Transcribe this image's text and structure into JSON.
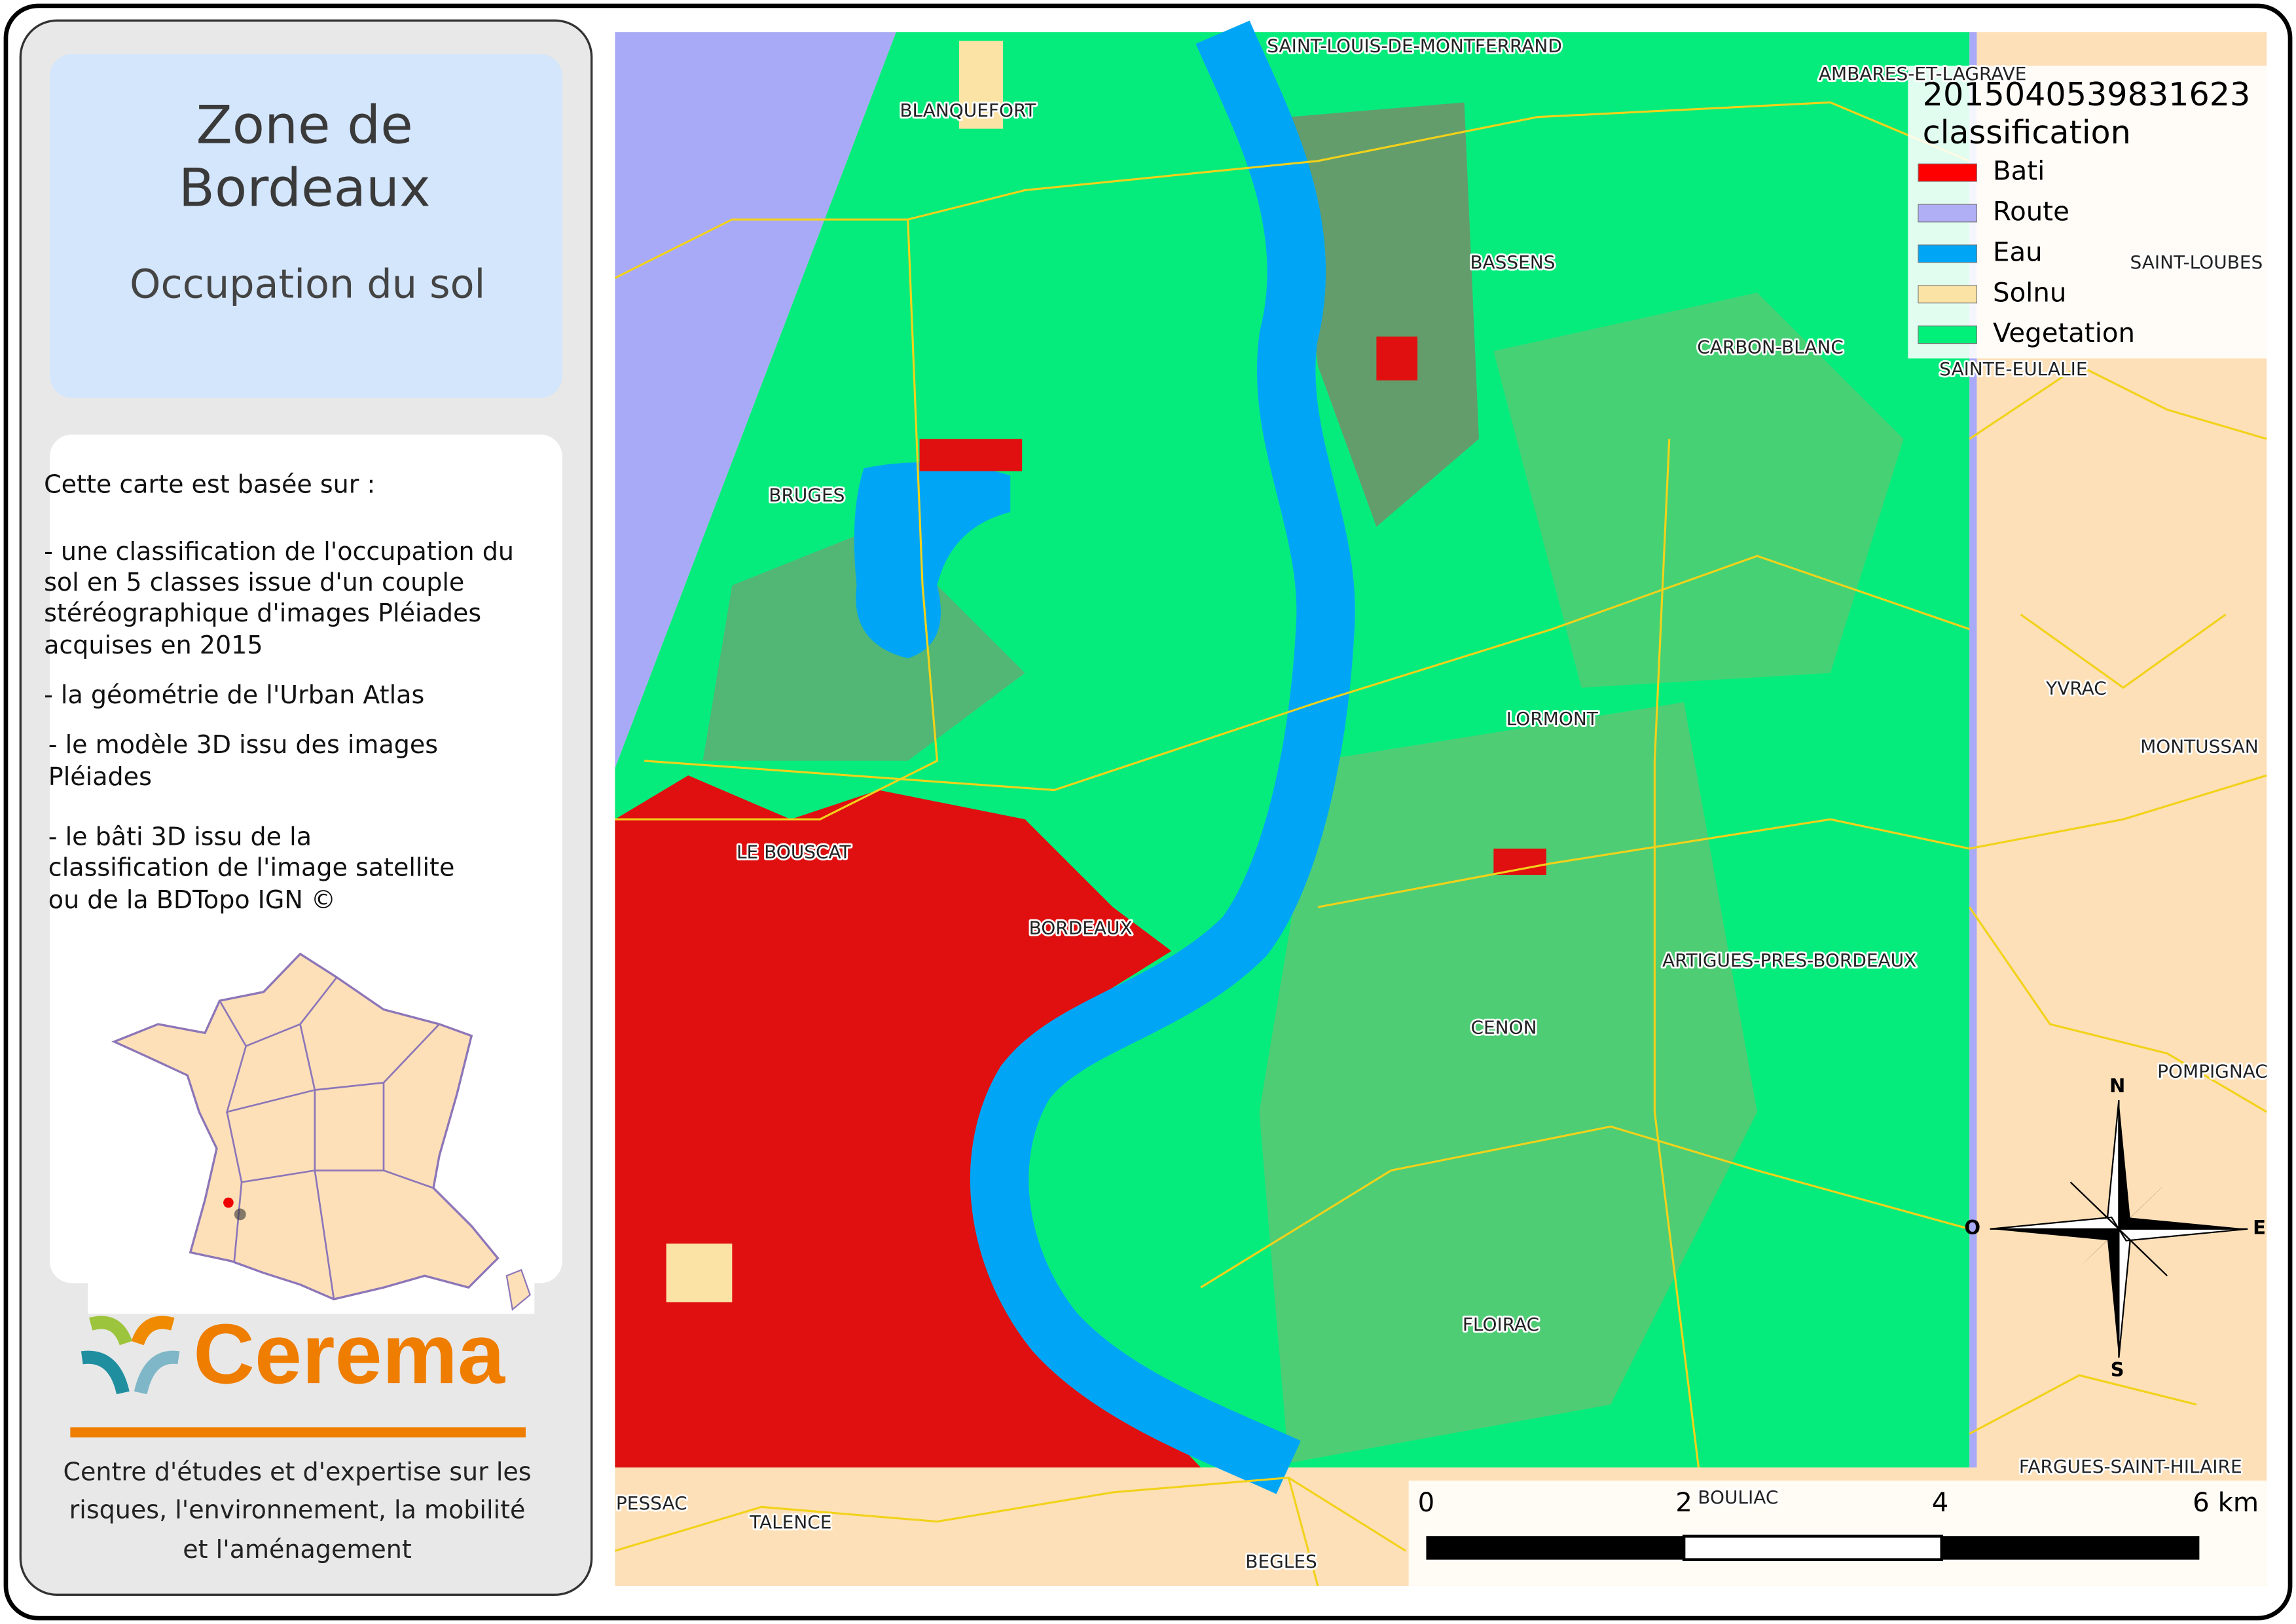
{
  "panel": {
    "title": [
      "Zone de",
      "Bordeaux"
    ],
    "subtitle": "Occupation du sol",
    "description": [
      "Cette carte est basée sur :",
      "- une classification de l'occupation du",
      "sol en 5 classes issue d'un couple",
      "stéréographique d'images Pléiades",
      "acquises en 2015",
      "- la géométrie de l'Urban Atlas",
      "- le modèle 3D issu des images",
      "Pléiades",
      "- le bâti 3D issu de la",
      "classification de l'image satellite",
      "ou de la BDTopo IGN  ©"
    ],
    "logo": "Cerema",
    "organization": [
      "Centre d'études et d'expertise sur les",
      "risques, l'environnement, la mobilité",
      "et l'aménagement"
    ]
  },
  "legend": {
    "title": [
      "2015040539831623",
      "classification"
    ],
    "items": [
      {
        "label": "Bati",
        "color": "#ff0000"
      },
      {
        "label": "Route",
        "color": "#b0aef5"
      },
      {
        "label": "Eau",
        "color": "#00a6f5"
      },
      {
        "label": "Solnu",
        "color": "#fae3a4"
      },
      {
        "label": "Vegetation",
        "color": "#00f07a"
      }
    ]
  },
  "places": [
    "SAINT-LOUIS-DE-MONTFERRAND",
    "AMBARES-ET-LAGRAVE",
    "BLANQUEFORT",
    "BASSENS",
    "SAINT-LOUBES",
    "CARBON-BLANC",
    "SAINTE-EULALIE",
    "BRUGES",
    "YVRAC",
    "LORMONT",
    "MONTUSSAN",
    "LE BOUSCAT",
    "BORDEAUX",
    "ARTIGUES-PRES-BORDEAUX",
    "CENON",
    "POMPIGNAC",
    "FLOIRAC",
    "FARGUES-SAINT-HILAIRE",
    "PESSAC",
    "TALENCE",
    "BOULIAC",
    "BEGLES"
  ],
  "compass": [
    "N",
    "E",
    "S",
    "O"
  ],
  "scale": [
    "0",
    "2",
    "4",
    "6 km"
  ]
}
